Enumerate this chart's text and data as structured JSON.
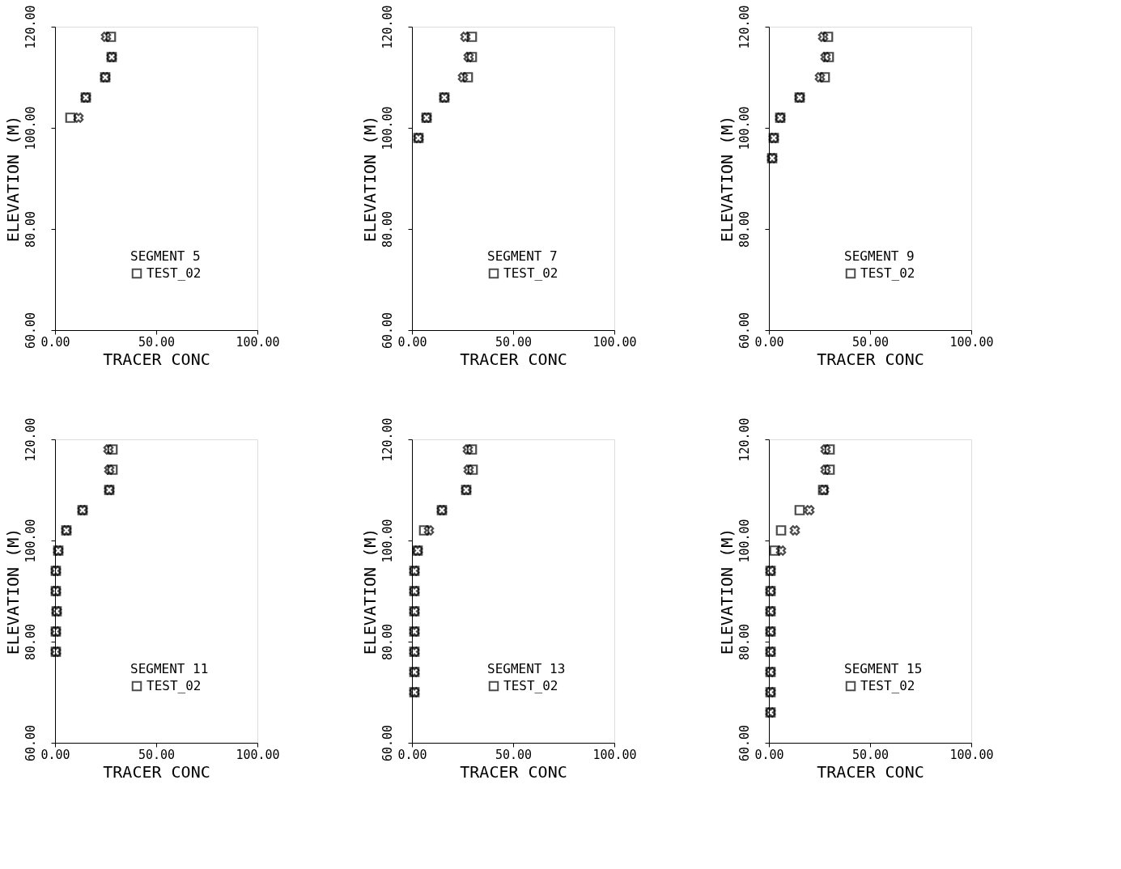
{
  "chart_data": [
    {
      "type": "scatter",
      "xlabel": "TRACER CONC",
      "ylabel": "ELEVATION (M)",
      "legend_title": "SEGMENT  5",
      "legend": "bottom right",
      "grid": false,
      "xlim": [
        0,
        100
      ],
      "ylim": [
        60,
        120
      ],
      "xticks": [
        {
          "value": 0,
          "label": "0.00"
        },
        {
          "value": 50,
          "label": "50.00"
        },
        {
          "value": 100,
          "label": "100.00"
        }
      ],
      "yticks": [
        {
          "value": 60,
          "label": "60.00"
        },
        {
          "value": 80,
          "label": "80.00"
        },
        {
          "value": 100,
          "label": "100.00"
        },
        {
          "value": 120,
          "label": "120.00"
        }
      ],
      "series": [
        {
          "name": "TEST_02",
          "color": "#000000",
          "marker": "square",
          "x": [
            27.6,
            28,
            24.8,
            15.2,
            7.6
          ],
          "values": [
            118,
            114,
            110,
            106,
            102
          ]
        },
        {
          "color": "#000000",
          "marker": "cross",
          "x": [
            25.2,
            28,
            24.8,
            15.2,
            11.6
          ],
          "values": [
            118,
            114,
            110,
            106,
            102
          ]
        }
      ]
    },
    {
      "type": "scatter",
      "xlabel": "TRACER CONC",
      "ylabel": "ELEVATION (M)",
      "legend_title": "SEGMENT  7",
      "legend": "bottom right",
      "grid": false,
      "xlim": [
        0,
        100
      ],
      "ylim": [
        60,
        120
      ],
      "xticks": [
        {
          "value": 0,
          "label": "0.00"
        },
        {
          "value": 50,
          "label": "50.00"
        },
        {
          "value": 100,
          "label": "100.00"
        }
      ],
      "yticks": [
        {
          "value": 60,
          "label": "60.00"
        },
        {
          "value": 80,
          "label": "80.00"
        },
        {
          "value": 100,
          "label": "100.00"
        },
        {
          "value": 120,
          "label": "120.00"
        }
      ],
      "series": [
        {
          "name": "TEST_02",
          "color": "#000000",
          "marker": "square",
          "x": [
            29.6,
            29.6,
            27.6,
            16,
            7.2,
            3.2
          ],
          "values": [
            118,
            114,
            110,
            106,
            102,
            98
          ]
        },
        {
          "color": "#000000",
          "marker": "cross",
          "x": [
            26.4,
            28,
            25.2,
            16,
            7.2,
            3.2
          ],
          "values": [
            118,
            114,
            110,
            106,
            102,
            98
          ]
        }
      ]
    },
    {
      "type": "scatter",
      "xlabel": "TRACER CONC",
      "ylabel": "ELEVATION (M)",
      "legend_title": "SEGMENT  9",
      "legend": "bottom right",
      "grid": false,
      "xlim": [
        0,
        100
      ],
      "ylim": [
        60,
        120
      ],
      "xticks": [
        {
          "value": 0,
          "label": "0.00"
        },
        {
          "value": 50,
          "label": "50.00"
        },
        {
          "value": 100,
          "label": "100.00"
        }
      ],
      "yticks": [
        {
          "value": 60,
          "label": "60.00"
        },
        {
          "value": 80,
          "label": "80.00"
        },
        {
          "value": 100,
          "label": "100.00"
        },
        {
          "value": 120,
          "label": "120.00"
        }
      ],
      "series": [
        {
          "name": "TEST_02",
          "color": "#000000",
          "marker": "square",
          "x": [
            29.2,
            29.6,
            27.6,
            15.2,
            5.6,
            2.4,
            1.6
          ],
          "values": [
            118,
            114,
            110,
            106,
            102,
            98,
            94
          ]
        },
        {
          "color": "#000000",
          "marker": "cross",
          "x": [
            26.8,
            28,
            25.2,
            15.2,
            5.6,
            2.4,
            1.6
          ],
          "values": [
            118,
            114,
            110,
            106,
            102,
            98,
            94
          ]
        }
      ]
    },
    {
      "type": "scatter",
      "xlabel": "TRACER CONC",
      "ylabel": "ELEVATION (M)",
      "legend_title": "SEGMENT 11",
      "legend": "bottom right",
      "grid": false,
      "xlim": [
        0,
        100
      ],
      "ylim": [
        60,
        120
      ],
      "xticks": [
        {
          "value": 0,
          "label": "0.00"
        },
        {
          "value": 50,
          "label": "50.00"
        },
        {
          "value": 100,
          "label": "100.00"
        }
      ],
      "yticks": [
        {
          "value": 60,
          "label": "60.00"
        },
        {
          "value": 80,
          "label": "80.00"
        },
        {
          "value": 100,
          "label": "100.00"
        },
        {
          "value": 120,
          "label": "120.00"
        }
      ],
      "series": [
        {
          "name": "TEST_02",
          "color": "#000000",
          "marker": "square",
          "x": [
            28.4,
            28.4,
            26.8,
            13.6,
            5.6,
            1.6,
            0.4,
            0.4,
            0.8,
            0.4,
            0.4
          ],
          "values": [
            118,
            114,
            110,
            106,
            102,
            98,
            94,
            90,
            86,
            82,
            78
          ]
        },
        {
          "color": "#000000",
          "marker": "cross",
          "x": [
            26.4,
            26.8,
            26.8,
            13.6,
            5.6,
            1.6,
            0.4,
            0.4,
            0.8,
            0.4,
            0.4
          ],
          "values": [
            118,
            114,
            110,
            106,
            102,
            98,
            94,
            90,
            86,
            82,
            78
          ]
        }
      ]
    },
    {
      "type": "scatter",
      "xlabel": "TRACER CONC",
      "ylabel": "ELEVATION (M)",
      "legend_title": "SEGMENT 13",
      "legend": "bottom right",
      "grid": false,
      "xlim": [
        0,
        100
      ],
      "ylim": [
        60,
        120
      ],
      "xticks": [
        {
          "value": 0,
          "label": "0.00"
        },
        {
          "value": 50,
          "label": "50.00"
        },
        {
          "value": 100,
          "label": "100.00"
        }
      ],
      "yticks": [
        {
          "value": 60,
          "label": "60.00"
        },
        {
          "value": 80,
          "label": "80.00"
        },
        {
          "value": 100,
          "label": "100.00"
        },
        {
          "value": 120,
          "label": "120.00"
        }
      ],
      "series": [
        {
          "name": "TEST_02",
          "color": "#000000",
          "marker": "square",
          "x": [
            29.6,
            30,
            26.8,
            14.8,
            6,
            2.8,
            1.2,
            1.2,
            1.2,
            1.2,
            1.2,
            1.2,
            1.2
          ],
          "values": [
            118,
            114,
            110,
            106,
            102,
            98,
            94,
            90,
            86,
            82,
            78,
            74,
            70
          ]
        },
        {
          "color": "#000000",
          "marker": "cross",
          "x": [
            27.6,
            28,
            26.8,
            14.8,
            8.4,
            2.8,
            1.2,
            1.2,
            1.2,
            1.2,
            1.2,
            1.2,
            1.2
          ],
          "values": [
            118,
            114,
            110,
            106,
            102,
            98,
            94,
            90,
            86,
            82,
            78,
            74,
            70
          ]
        }
      ]
    },
    {
      "type": "scatter",
      "xlabel": "TRACER CONC",
      "ylabel": "ELEVATION (M)",
      "legend_title": "SEGMENT 15",
      "legend": "bottom right",
      "grid": false,
      "xlim": [
        0,
        100
      ],
      "ylim": [
        60,
        120
      ],
      "xticks": [
        {
          "value": 0,
          "label": "0.00"
        },
        {
          "value": 50,
          "label": "50.00"
        },
        {
          "value": 100,
          "label": "100.00"
        }
      ],
      "yticks": [
        {
          "value": 60,
          "label": "60.00"
        },
        {
          "value": 80,
          "label": "80.00"
        },
        {
          "value": 100,
          "label": "100.00"
        },
        {
          "value": 120,
          "label": "120.00"
        }
      ],
      "series": [
        {
          "name": "TEST_02",
          "color": "#000000",
          "marker": "square",
          "x": [
            30,
            30,
            26.8,
            15.2,
            6,
            2.8,
            0.8,
            0.8,
            0.8,
            0.8,
            0.8,
            0.8,
            0.8,
            0.8
          ],
          "values": [
            118,
            114,
            110,
            106,
            102,
            98,
            94,
            90,
            86,
            82,
            78,
            74,
            70,
            66
          ]
        },
        {
          "color": "#000000",
          "marker": "cross",
          "x": [
            28,
            28,
            27.2,
            20,
            12.8,
            6,
            0.8,
            0.8,
            0.8,
            0.8,
            0.8,
            0.8,
            0.8,
            0.8
          ],
          "values": [
            118,
            114,
            110,
            106,
            102,
            98,
            94,
            90,
            86,
            82,
            78,
            74,
            70,
            66
          ]
        }
      ]
    }
  ]
}
